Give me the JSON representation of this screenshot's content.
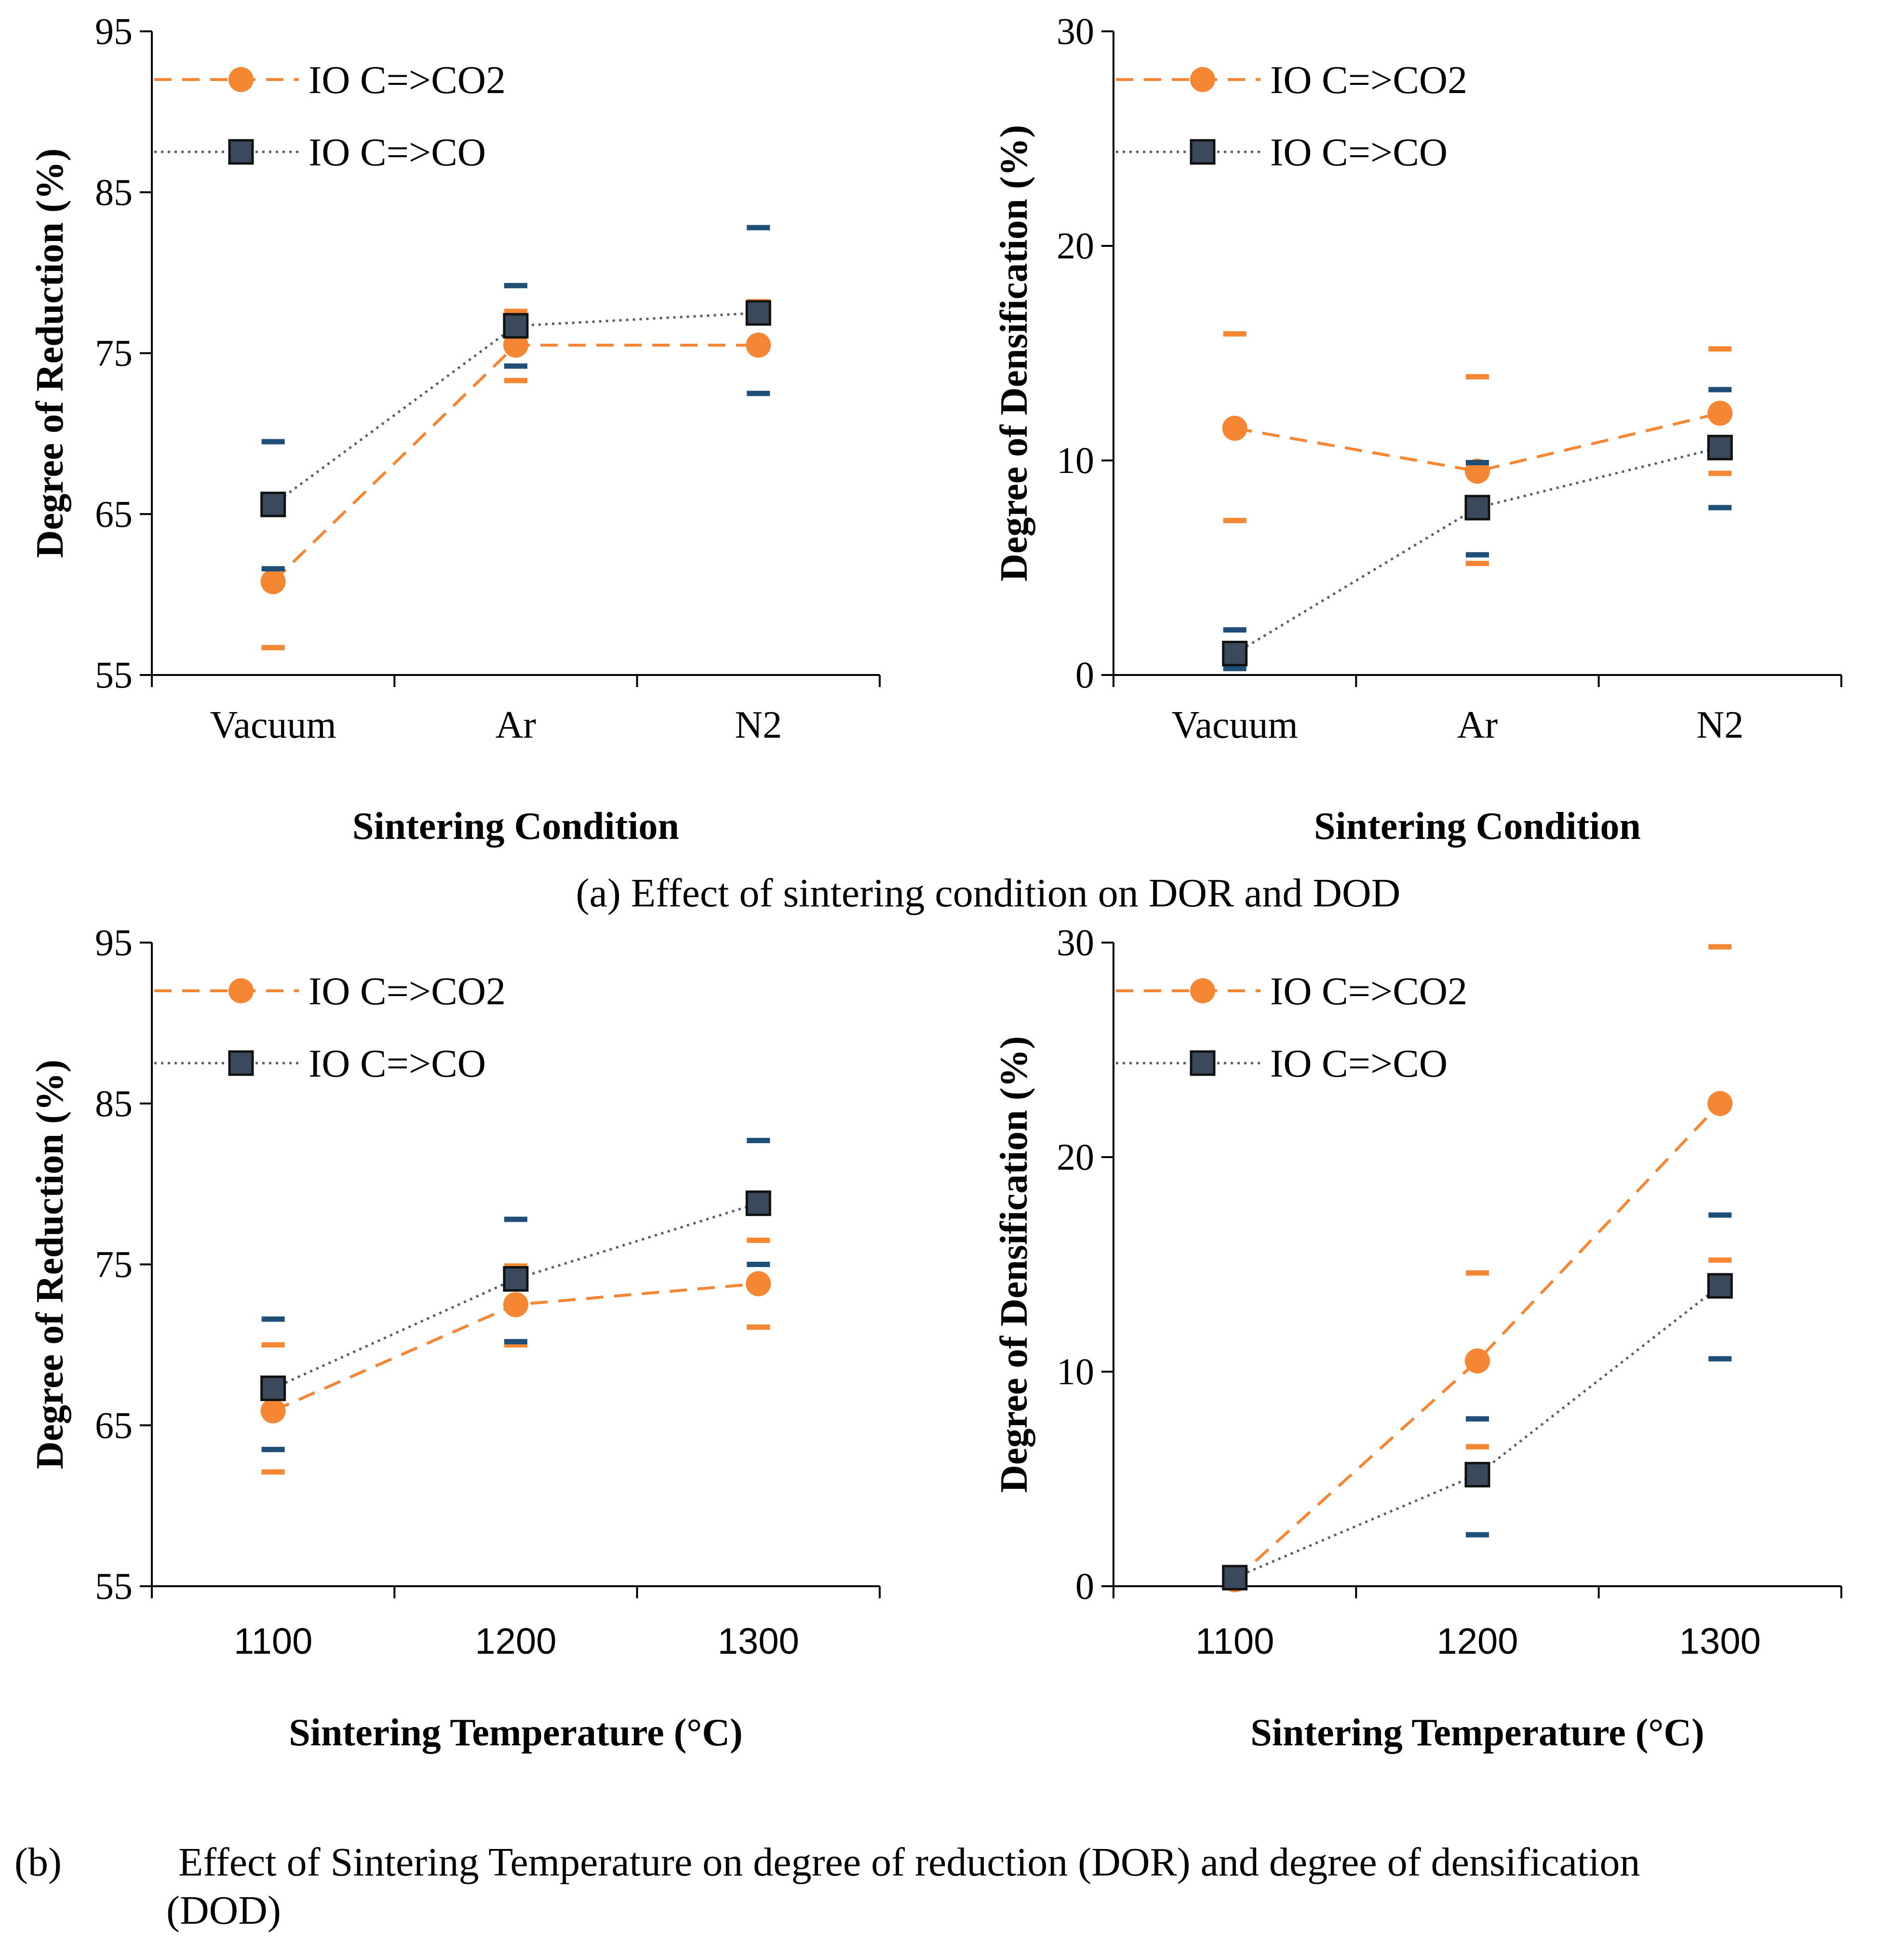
{
  "colors": {
    "co2": "#F58634",
    "co": "#3A4A5C",
    "co_err": "#1F4E79"
  },
  "chart_data": [
    {
      "type": "line",
      "panel": "a-left",
      "categories": [
        "Vacuum",
        "Ar",
        "N2"
      ],
      "xlabel": "Sintering Condition",
      "ylabel": "Degree of Reduction (%)",
      "ylim": [
        55,
        95
      ],
      "yticks": [
        "55",
        "65",
        "75",
        "85",
        "95"
      ],
      "legend": [
        "IO C=>CO2",
        "IO C=>CO"
      ],
      "series": [
        {
          "name": "IO C=>CO2",
          "values": [
            60.8,
            75.5,
            75.5
          ],
          "err_low": [
            56.7,
            73.3,
            75.5
          ],
          "err_high": [
            65.1,
            77.6,
            78.2
          ]
        },
        {
          "name": "IO C=>CO",
          "values": [
            65.6,
            76.7,
            77.5
          ],
          "err_low": [
            61.6,
            74.2,
            72.5
          ],
          "err_high": [
            69.5,
            79.2,
            82.8
          ]
        }
      ]
    },
    {
      "type": "line",
      "panel": "a-right",
      "categories": [
        "Vacuum",
        "Ar",
        "N2"
      ],
      "xlabel": "Sintering Condition",
      "ylabel": "Degree of Densification (%)",
      "ylim": [
        0,
        30
      ],
      "yticks": [
        "0",
        "10",
        "20",
        "30"
      ],
      "legend": [
        "IO C=>CO2",
        "IO C=>CO"
      ],
      "series": [
        {
          "name": "IO C=>CO2",
          "values": [
            11.5,
            9.5,
            12.2
          ],
          "err_low": [
            7.2,
            5.2,
            9.4
          ],
          "err_high": [
            15.9,
            13.9,
            15.2
          ]
        },
        {
          "name": "IO C=>CO",
          "values": [
            1.0,
            7.8,
            10.6
          ],
          "err_low": [
            0.3,
            5.6,
            7.8
          ],
          "err_high": [
            2.1,
            9.9,
            13.3
          ]
        }
      ]
    },
    {
      "type": "line",
      "panel": "b-left",
      "categories": [
        "1100",
        "1200",
        "1300"
      ],
      "xlabel": "Sintering Temperature (°C)",
      "ylabel": "Degree of Reduction (%)",
      "ylim": [
        55,
        95
      ],
      "yticks": [
        "55",
        "65",
        "75",
        "85",
        "95"
      ],
      "legend": [
        "IO C=>CO2",
        "IO C=>CO"
      ],
      "series": [
        {
          "name": "IO C=>CO2",
          "values": [
            65.9,
            72.5,
            73.8
          ],
          "err_low": [
            62.1,
            70.0,
            71.1
          ],
          "err_high": [
            70.0,
            74.9,
            76.5
          ]
        },
        {
          "name": "IO C=>CO",
          "values": [
            67.3,
            74.1,
            78.8
          ],
          "err_low": [
            63.5,
            70.2,
            75.0
          ],
          "err_high": [
            71.6,
            77.8,
            82.7
          ]
        }
      ]
    },
    {
      "type": "line",
      "panel": "b-right",
      "categories": [
        "1100",
        "1200",
        "1300"
      ],
      "xlabel": "Sintering Temperature (°C)",
      "ylabel": "Degree of Densification (%)",
      "ylim": [
        0,
        30
      ],
      "yticks": [
        "0",
        "10",
        "20",
        "30"
      ],
      "legend": [
        "IO C=>CO2",
        "IO C=>CO"
      ],
      "series": [
        {
          "name": "IO C=>CO2",
          "values": [
            0.3,
            10.5,
            22.5
          ],
          "err_low": [
            0.0,
            6.5,
            15.2
          ],
          "err_high": [
            0.5,
            14.6,
            29.8
          ]
        },
        {
          "name": "IO C=>CO",
          "values": [
            0.4,
            5.2,
            14.0
          ],
          "err_low": [
            0.2,
            2.4,
            10.6
          ],
          "err_high": [
            0.6,
            7.8,
            17.3
          ]
        }
      ]
    }
  ],
  "captions": {
    "a": "(a) Effect of sintering condition on DOR and DOD",
    "b_label": "(b)",
    "b_line1": "Effect of Sintering Temperature on degree of reduction (DOR) and degree of densification",
    "b_line2": "(DOD)"
  }
}
